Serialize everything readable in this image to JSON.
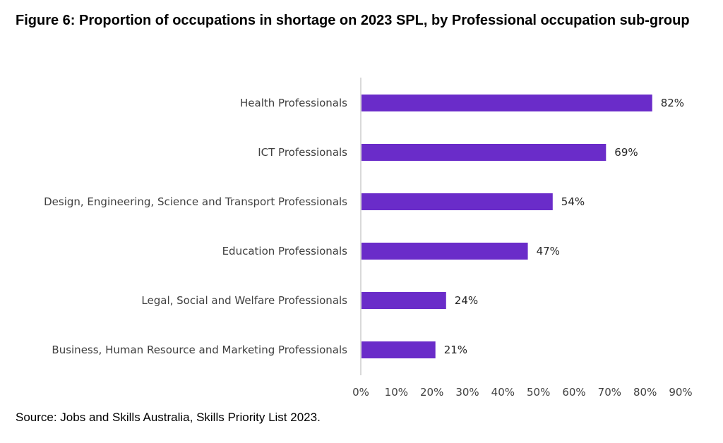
{
  "figure": {
    "title": "Figure 6: Proportion of occupations in shortage on 2023 SPL, by Professional occupation sub-group",
    "source": "Source: Jobs and Skills Australia, Skills Priority List 2023."
  },
  "chart_data": {
    "type": "bar",
    "orientation": "horizontal",
    "categories": [
      "Health Professionals",
      "ICT Professionals",
      "Design, Engineering, Science and Transport Professionals",
      "Education Professionals",
      "Legal, Social and Welfare Professionals",
      "Business, Human Resource and Marketing Professionals"
    ],
    "values": [
      82,
      69,
      54,
      47,
      24,
      21
    ],
    "value_labels": [
      "82%",
      "69%",
      "54%",
      "47%",
      "24%",
      "21%"
    ],
    "xlim": [
      0,
      90
    ],
    "xticks": [
      0,
      10,
      20,
      30,
      40,
      50,
      60,
      70,
      80,
      90
    ],
    "xtick_labels": [
      "0%",
      "10%",
      "20%",
      "30%",
      "40%",
      "50%",
      "60%",
      "70%",
      "80%",
      "90%"
    ],
    "bar_color": "#6a2cc9",
    "axis_color": "#d9d9d9",
    "grid": false,
    "legend": "none"
  }
}
